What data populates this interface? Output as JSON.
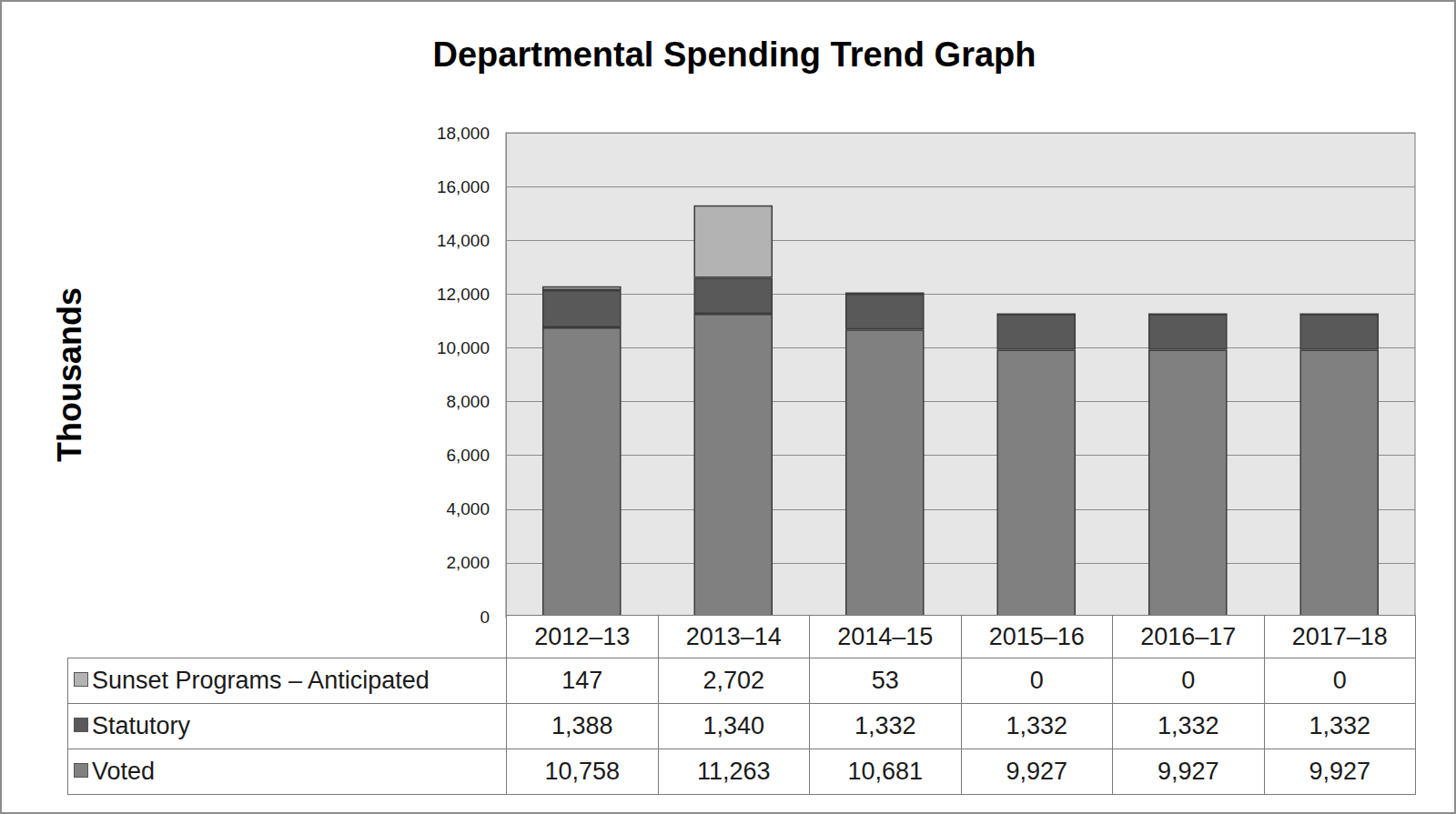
{
  "chart_data": {
    "type": "bar",
    "title": "Departmental Spending Trend Graph",
    "y_label": "Thousands",
    "categories": [
      "2012–13",
      "2013–14",
      "2014–15",
      "2015–16",
      "2016–17",
      "2017–18"
    ],
    "series": [
      {
        "name": "Voted",
        "color": "#808080",
        "values": [
          10758,
          11263,
          10681,
          9927,
          9927,
          9927
        ],
        "value_labels": [
          "10,758",
          "11,263",
          "10,681",
          "9,927",
          "9,927",
          "9,927"
        ]
      },
      {
        "name": "Statutory",
        "color": "#595959",
        "values": [
          1388,
          1340,
          1332,
          1332,
          1332,
          1332
        ],
        "value_labels": [
          "1,388",
          "1,340",
          "1,332",
          "1,332",
          "1,332",
          "1,332"
        ]
      },
      {
        "name": "Sunset Programs – Anticipated",
        "color": "#b3b3b3",
        "values": [
          147,
          2702,
          53,
          0,
          0,
          0
        ],
        "value_labels": [
          "147",
          "2,702",
          "53",
          "0",
          "0",
          "0"
        ]
      }
    ],
    "stacked": true,
    "ylim": [
      0,
      18000
    ],
    "yticks": [
      0,
      {
        "value": 2000,
        "label": "2,000"
      },
      {
        "value": 4000,
        "label": "4,000"
      },
      {
        "value": 6000,
        "label": "6,000"
      },
      {
        "value": 8000,
        "label": "8,000"
      },
      {
        "value": 10000,
        "label": "10,000"
      },
      {
        "value": 12000,
        "label": "12,000"
      },
      {
        "value": 14000,
        "label": "14,000"
      },
      {
        "value": 16000,
        "label": "16,000"
      },
      {
        "value": 18000,
        "label": "18,000"
      }
    ],
    "grid": true
  }
}
